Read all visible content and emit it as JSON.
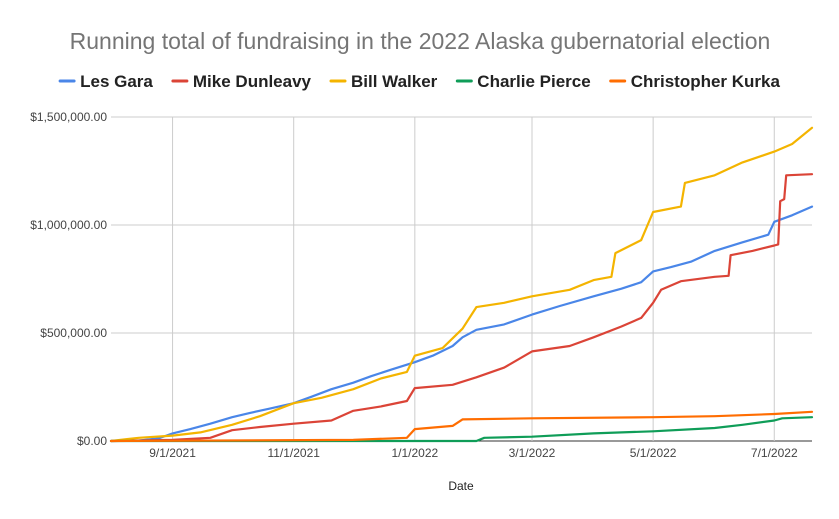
{
  "chart_data": {
    "type": "line",
    "title": "Running total of fundraising in the 2022 Alaska gubernatorial election",
    "xlabel": "Date",
    "ylabel": "",
    "x_range": [
      "2021-08-01",
      "2022-07-20"
    ],
    "ylim": [
      0,
      1500000
    ],
    "grid": true,
    "legend_position": "top",
    "x_ticks": [
      {
        "date": "2021-09-01",
        "label": "9/1/2021"
      },
      {
        "date": "2021-11-01",
        "label": "11/1/2021"
      },
      {
        "date": "2022-01-01",
        "label": "1/1/2022"
      },
      {
        "date": "2022-03-01",
        "label": "3/1/2022"
      },
      {
        "date": "2022-05-01",
        "label": "5/1/2022"
      },
      {
        "date": "2022-07-01",
        "label": "7/1/2022"
      }
    ],
    "y_ticks": [
      {
        "value": 0,
        "label": "$0.00"
      },
      {
        "value": 500000,
        "label": "$500,000.00"
      },
      {
        "value": 1000000,
        "label": "$1,000,000.00"
      },
      {
        "value": 1500000,
        "label": "$1,500,000.00"
      }
    ],
    "series": [
      {
        "name": "Les Gara",
        "color": "#4a86e8",
        "points": [
          [
            "2021-08-01",
            0
          ],
          [
            "2021-08-15",
            2000
          ],
          [
            "2021-08-25",
            12000
          ],
          [
            "2021-09-01",
            35000
          ],
          [
            "2021-09-10",
            55000
          ],
          [
            "2021-09-20",
            80000
          ],
          [
            "2021-10-01",
            110000
          ],
          [
            "2021-10-10",
            130000
          ],
          [
            "2021-10-20",
            150000
          ],
          [
            "2021-11-01",
            175000
          ],
          [
            "2021-11-10",
            205000
          ],
          [
            "2021-11-20",
            240000
          ],
          [
            "2021-12-01",
            270000
          ],
          [
            "2021-12-10",
            300000
          ],
          [
            "2021-12-20",
            330000
          ],
          [
            "2022-01-01",
            365000
          ],
          [
            "2022-01-10",
            395000
          ],
          [
            "2022-01-20",
            440000
          ],
          [
            "2022-01-25",
            480000
          ],
          [
            "2022-02-01",
            515000
          ],
          [
            "2022-02-15",
            540000
          ],
          [
            "2022-03-01",
            585000
          ],
          [
            "2022-03-15",
            625000
          ],
          [
            "2022-04-01",
            670000
          ],
          [
            "2022-04-15",
            705000
          ],
          [
            "2022-04-25",
            735000
          ],
          [
            "2022-05-01",
            785000
          ],
          [
            "2022-05-10",
            805000
          ],
          [
            "2022-05-20",
            830000
          ],
          [
            "2022-06-01",
            880000
          ],
          [
            "2022-06-15",
            920000
          ],
          [
            "2022-06-28",
            955000
          ],
          [
            "2022-07-01",
            1015000
          ],
          [
            "2022-07-10",
            1045000
          ],
          [
            "2022-07-20",
            1085000
          ]
        ]
      },
      {
        "name": "Mike Dunleavy",
        "color": "#db4437",
        "points": [
          [
            "2021-08-01",
            0
          ],
          [
            "2021-09-01",
            5000
          ],
          [
            "2021-09-20",
            15000
          ],
          [
            "2021-10-01",
            50000
          ],
          [
            "2021-10-15",
            65000
          ],
          [
            "2021-11-01",
            80000
          ],
          [
            "2021-11-20",
            95000
          ],
          [
            "2021-12-01",
            140000
          ],
          [
            "2021-12-15",
            160000
          ],
          [
            "2021-12-28",
            185000
          ],
          [
            "2022-01-01",
            245000
          ],
          [
            "2022-01-20",
            260000
          ],
          [
            "2022-02-01",
            295000
          ],
          [
            "2022-02-15",
            340000
          ],
          [
            "2022-03-01",
            415000
          ],
          [
            "2022-03-20",
            440000
          ],
          [
            "2022-04-01",
            480000
          ],
          [
            "2022-04-15",
            530000
          ],
          [
            "2022-04-25",
            570000
          ],
          [
            "2022-05-01",
            640000
          ],
          [
            "2022-05-05",
            700000
          ],
          [
            "2022-05-15",
            740000
          ],
          [
            "2022-06-01",
            760000
          ],
          [
            "2022-06-08",
            765000
          ],
          [
            "2022-06-09",
            860000
          ],
          [
            "2022-06-20",
            880000
          ],
          [
            "2022-07-01",
            905000
          ],
          [
            "2022-07-03",
            910000
          ],
          [
            "2022-07-04",
            1110000
          ],
          [
            "2022-07-06",
            1120000
          ],
          [
            "2022-07-07",
            1230000
          ],
          [
            "2022-07-20",
            1235000
          ]
        ]
      },
      {
        "name": "Bill Walker",
        "color": "#f4b400",
        "points": [
          [
            "2021-08-01",
            0
          ],
          [
            "2021-08-15",
            15000
          ],
          [
            "2021-09-01",
            25000
          ],
          [
            "2021-09-15",
            40000
          ],
          [
            "2021-10-01",
            75000
          ],
          [
            "2021-10-15",
            115000
          ],
          [
            "2021-11-01",
            175000
          ],
          [
            "2021-11-15",
            200000
          ],
          [
            "2021-12-01",
            240000
          ],
          [
            "2021-12-15",
            290000
          ],
          [
            "2021-12-28",
            320000
          ],
          [
            "2022-01-01",
            395000
          ],
          [
            "2022-01-15",
            430000
          ],
          [
            "2022-01-25",
            520000
          ],
          [
            "2022-02-01",
            620000
          ],
          [
            "2022-02-15",
            640000
          ],
          [
            "2022-03-01",
            670000
          ],
          [
            "2022-03-20",
            700000
          ],
          [
            "2022-04-01",
            745000
          ],
          [
            "2022-04-10",
            760000
          ],
          [
            "2022-04-12",
            870000
          ],
          [
            "2022-04-25",
            930000
          ],
          [
            "2022-05-01",
            1060000
          ],
          [
            "2022-05-15",
            1085000
          ],
          [
            "2022-05-17",
            1195000
          ],
          [
            "2022-06-01",
            1230000
          ],
          [
            "2022-06-15",
            1290000
          ],
          [
            "2022-07-01",
            1340000
          ],
          [
            "2022-07-10",
            1375000
          ],
          [
            "2022-07-20",
            1450000
          ]
        ]
      },
      {
        "name": "Charlie Pierce",
        "color": "#0f9d58",
        "points": [
          [
            "2021-08-01",
            0
          ],
          [
            "2022-02-01",
            0
          ],
          [
            "2022-02-05",
            15000
          ],
          [
            "2022-03-01",
            20000
          ],
          [
            "2022-04-01",
            35000
          ],
          [
            "2022-05-01",
            45000
          ],
          [
            "2022-06-01",
            60000
          ],
          [
            "2022-06-15",
            75000
          ],
          [
            "2022-07-01",
            95000
          ],
          [
            "2022-07-05",
            105000
          ],
          [
            "2022-07-20",
            110000
          ]
        ]
      },
      {
        "name": "Christopher Kurka",
        "color": "#ff6d01",
        "points": [
          [
            "2021-08-01",
            0
          ],
          [
            "2021-12-01",
            5000
          ],
          [
            "2021-12-28",
            15000
          ],
          [
            "2022-01-01",
            55000
          ],
          [
            "2022-01-20",
            70000
          ],
          [
            "2022-01-25",
            100000
          ],
          [
            "2022-03-01",
            105000
          ],
          [
            "2022-05-01",
            110000
          ],
          [
            "2022-06-01",
            115000
          ],
          [
            "2022-07-01",
            125000
          ],
          [
            "2022-07-20",
            135000
          ]
        ]
      }
    ]
  }
}
